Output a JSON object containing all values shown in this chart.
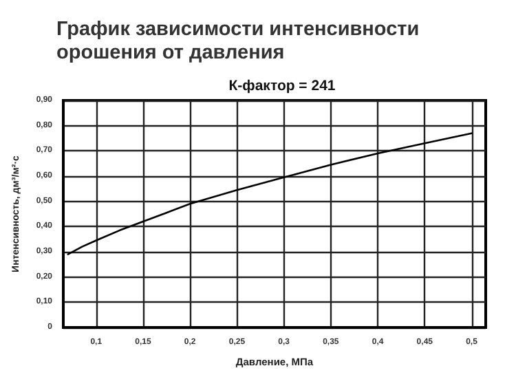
{
  "chart_data": {
    "type": "line",
    "title": "График зависимости интенсивности\nорошения от давления",
    "subtitle": "К-фактор = 241",
    "xlabel": "Давление, МПа",
    "ylabel": "Интенсивность, дм³/м²·с",
    "x": [
      0.07,
      0.085,
      0.1,
      0.125,
      0.15,
      0.175,
      0.2,
      0.25,
      0.3,
      0.35,
      0.4,
      0.45,
      0.5
    ],
    "series": [
      {
        "color": "#000000",
        "values": [
          0.29,
          0.32,
          0.345,
          0.385,
          0.42,
          0.455,
          0.49,
          0.545,
          0.595,
          0.645,
          0.69,
          0.73,
          0.77
        ]
      }
    ],
    "xlim": [
      0.065,
      0.515
    ],
    "xticks": [
      {
        "value": 0.1,
        "label": "0,1"
      },
      {
        "value": 0.15,
        "label": "0,15"
      },
      {
        "value": 0.2,
        "label": "0,2"
      },
      {
        "value": 0.25,
        "label": "0,25"
      },
      {
        "value": 0.3,
        "label": "0,3"
      },
      {
        "value": 0.35,
        "label": "0,35"
      },
      {
        "value": 0.4,
        "label": "0,4"
      },
      {
        "value": 0.45,
        "label": "0,45"
      },
      {
        "value": 0.5,
        "label": "0,5"
      }
    ],
    "ylim": [
      0,
      0.9
    ],
    "yticks": [
      0,
      {
        "value": 0.1,
        "label": "0,10"
      },
      {
        "value": 0.2,
        "label": "0,20"
      },
      {
        "value": 0.3,
        "label": "0,30"
      },
      {
        "value": 0.4,
        "label": "0,40"
      },
      {
        "value": 0.5,
        "label": "0,50"
      },
      {
        "value": 0.6,
        "label": "0,60"
      },
      {
        "value": 0.7,
        "label": "0,70"
      },
      {
        "value": 0.8,
        "label": "0,80"
      },
      {
        "value": 0.9,
        "label": "0,90"
      }
    ],
    "grid": true,
    "marker": "none",
    "line_style": "solid"
  }
}
